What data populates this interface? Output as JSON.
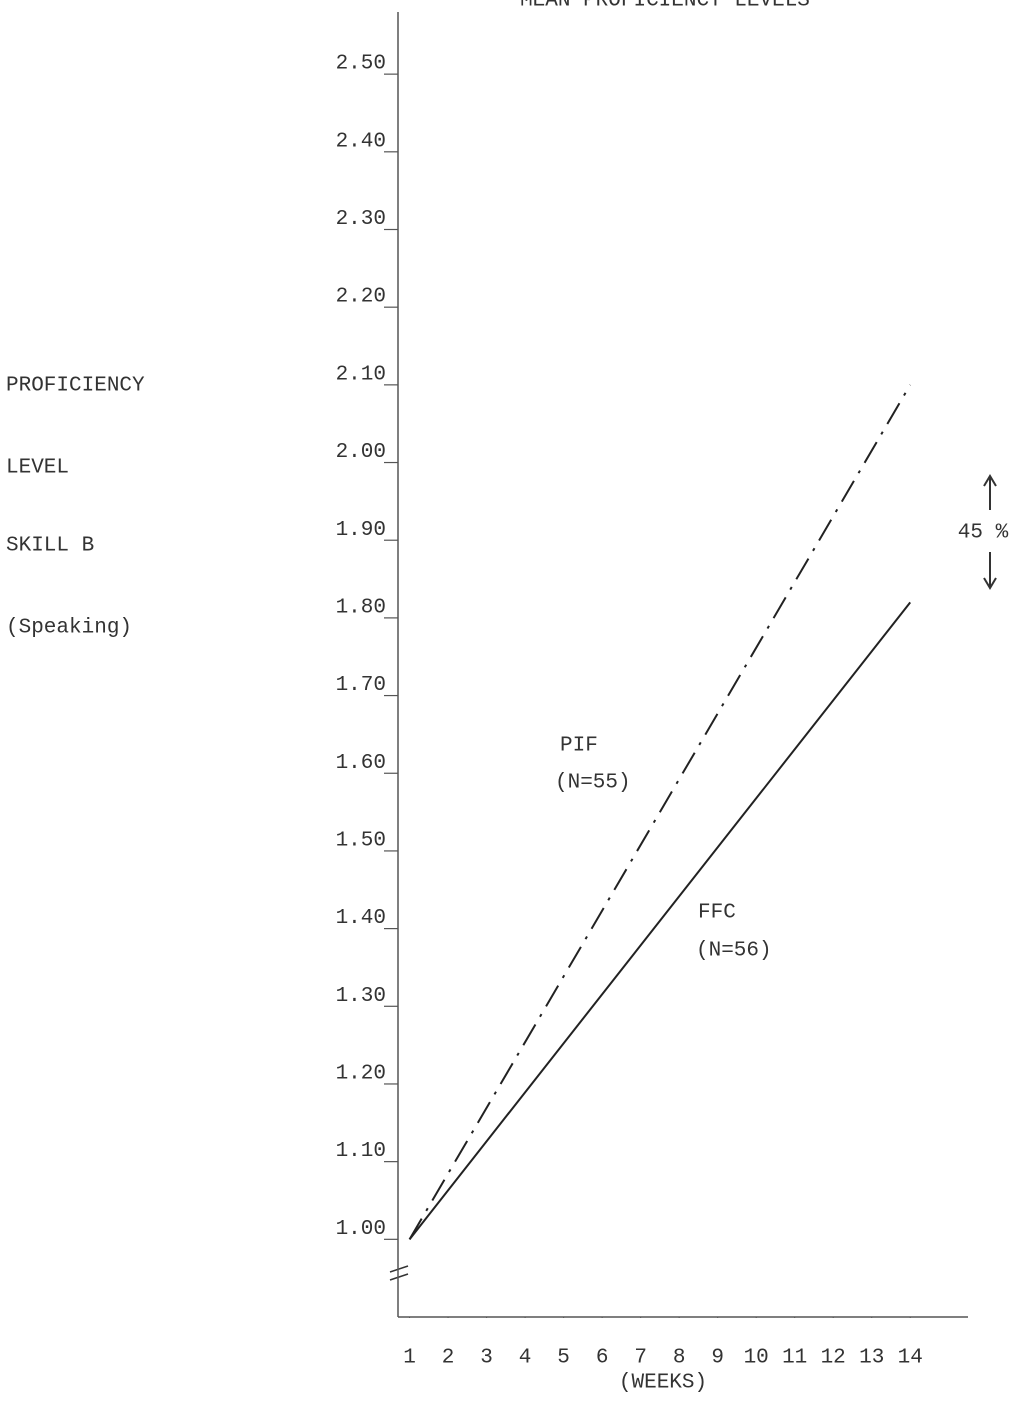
{
  "chart_data": {
    "type": "line",
    "title": "MEAN PROFICIENCY LEVELS",
    "ylabel_lines": [
      "PROFICIENCY",
      "LEVEL",
      "SKILL B",
      "(Speaking)"
    ],
    "xlabel": "(WEEKS)",
    "x": [
      1,
      14
    ],
    "series": [
      {
        "name": "PIF",
        "color": "#222",
        "dash": "dash-dot",
        "values": [
          1.0,
          2.1
        ]
      },
      {
        "name": "FFC",
        "color": "#222",
        "dash": "solid",
        "values": [
          1.0,
          1.82
        ]
      }
    ],
    "annotations": [
      "(N=55)",
      "(N=56)",
      "45 %"
    ],
    "xlim": [
      0.7,
      15.5
    ],
    "xticks": [
      1,
      2,
      3,
      4,
      5,
      6,
      7,
      8,
      9,
      10,
      11,
      12,
      13,
      14
    ],
    "ylim": [
      0.9,
      2.58
    ],
    "yticks": [
      {
        "value": 1.0,
        "label": "1.00"
      },
      {
        "value": 1.1,
        "label": "1.10"
      },
      {
        "value": 1.2,
        "label": "1.20"
      },
      {
        "value": 1.3,
        "label": "1.30"
      },
      {
        "value": 1.4,
        "label": "1.40"
      },
      {
        "value": 1.5,
        "label": "1.50"
      },
      {
        "value": 1.6,
        "label": "1.60"
      },
      {
        "value": 1.7,
        "label": "1.70"
      },
      {
        "value": 1.8,
        "label": "1.80"
      },
      {
        "value": 1.9,
        "label": "1.90"
      },
      {
        "value": 2.0,
        "label": "2.00"
      },
      {
        "value": 2.1,
        "label": "2.10"
      },
      {
        "value": 2.2,
        "label": "2.20"
      },
      {
        "value": 2.3,
        "label": "2.30"
      },
      {
        "value": 2.4,
        "label": "2.40"
      },
      {
        "value": 2.5,
        "label": "2.50"
      }
    ]
  }
}
